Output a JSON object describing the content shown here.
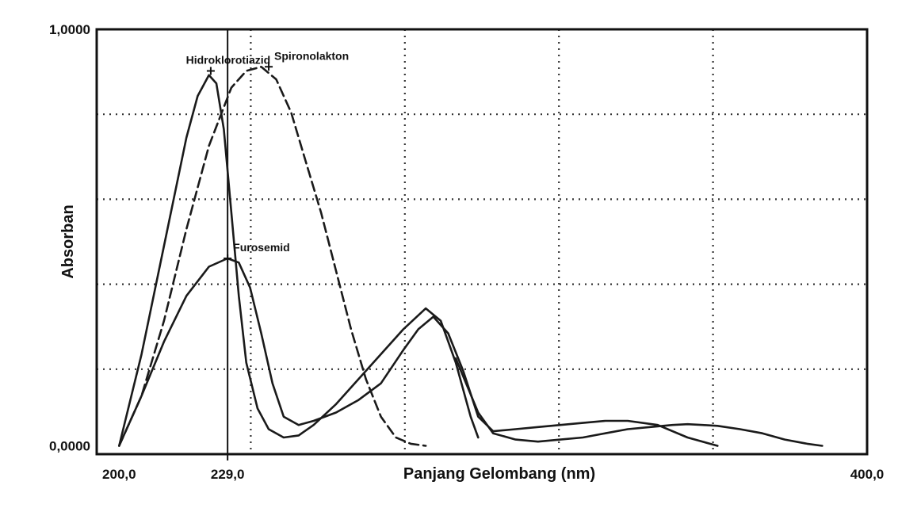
{
  "chart_data": {
    "type": "line",
    "xlabel": "Panjang Gelombang (nm)",
    "ylabel": "Absorban",
    "x_tick_labels": [
      "200,0",
      "229,0",
      "400,0"
    ],
    "x_ticks": [
      200,
      229,
      400
    ],
    "y_tick_labels": [
      "1,0000",
      "0,0000"
    ],
    "y_ticks": [
      1.0,
      0.0
    ],
    "xlim": [
      194,
      400
    ],
    "ylim": [
      -0.02,
      1.0
    ],
    "grid": true,
    "marker_line_x": 229,
    "series": [
      {
        "name": "Hidroklorotiazid",
        "style": "solid",
        "peak": [
          224.5,
          0.9
        ],
        "label_anchor": "left",
        "x": [
          200,
          206,
          212,
          218,
          221,
          224,
          226,
          228,
          230,
          232,
          234,
          237,
          240,
          244,
          248,
          252,
          258,
          264,
          270,
          276,
          282,
          286,
          290,
          294,
          296
        ],
        "y": [
          0.0,
          0.22,
          0.48,
          0.74,
          0.84,
          0.89,
          0.87,
          0.76,
          0.56,
          0.36,
          0.2,
          0.09,
          0.04,
          0.02,
          0.025,
          0.05,
          0.1,
          0.16,
          0.22,
          0.28,
          0.33,
          0.3,
          0.2,
          0.07,
          0.02
        ]
      },
      {
        "name": "Spironolakton",
        "style": "dashed",
        "peak": [
          240,
          0.91
        ],
        "label_anchor": "right",
        "x": [
          200,
          206,
          212,
          218,
          224,
          230,
          234,
          238,
          242,
          246,
          250,
          254,
          258,
          262,
          266,
          270,
          274,
          278,
          282
        ],
        "y": [
          0.0,
          0.12,
          0.3,
          0.52,
          0.72,
          0.86,
          0.9,
          0.91,
          0.88,
          0.8,
          0.68,
          0.56,
          0.42,
          0.28,
          0.16,
          0.07,
          0.02,
          0.005,
          0.0
        ]
      },
      {
        "name": "Furosemid",
        "style": "solid",
        "peak": [
          229,
          0.45
        ],
        "label_anchor": "right",
        "x": [
          200,
          206,
          212,
          218,
          224,
          229,
          232,
          235,
          238,
          241,
          244,
          248,
          252,
          258,
          264,
          270,
          276,
          280,
          284,
          288,
          292,
          296,
          300,
          306,
          312,
          318,
          324,
          330,
          336,
          344,
          352,
          360
        ],
        "y": [
          0.0,
          0.12,
          0.25,
          0.36,
          0.43,
          0.45,
          0.44,
          0.38,
          0.27,
          0.15,
          0.07,
          0.05,
          0.06,
          0.08,
          0.11,
          0.15,
          0.23,
          0.28,
          0.31,
          0.27,
          0.18,
          0.07,
          0.035,
          0.04,
          0.045,
          0.05,
          0.055,
          0.06,
          0.06,
          0.05,
          0.02,
          0.0
        ]
      },
      {
        "name": "",
        "style": "solid",
        "peak": null,
        "label_anchor": "none",
        "x": [
          290,
          296,
          300,
          306,
          312,
          318,
          324,
          330,
          336,
          342,
          348,
          352,
          356,
          360,
          366,
          372,
          378,
          384,
          388
        ],
        "y": [
          0.21,
          0.08,
          0.03,
          0.015,
          0.01,
          0.015,
          0.02,
          0.03,
          0.04,
          0.045,
          0.05,
          0.052,
          0.05,
          0.048,
          0.04,
          0.03,
          0.015,
          0.005,
          0.0
        ]
      }
    ]
  }
}
